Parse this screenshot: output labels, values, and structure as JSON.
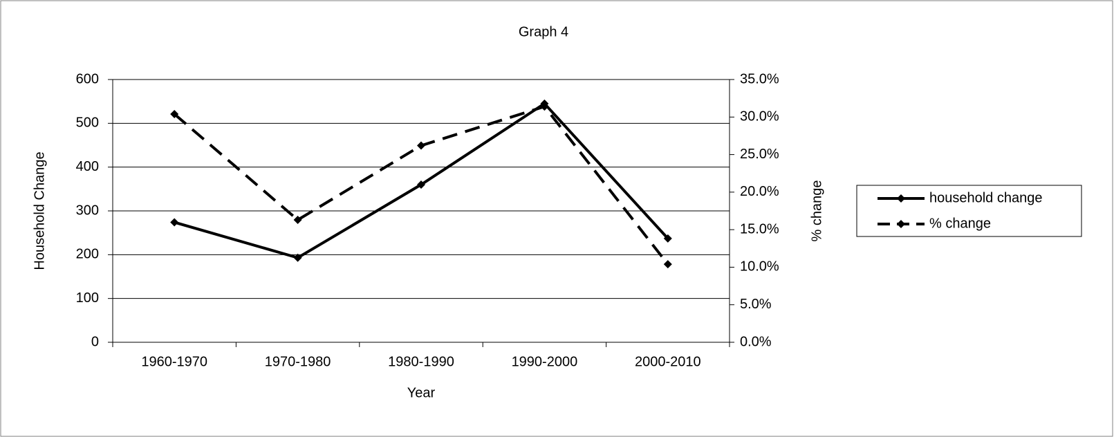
{
  "chart_data": {
    "type": "line",
    "title": "Graph 4",
    "x_label": "Year",
    "y_label": "Household Change",
    "y2_label": "% change",
    "categories": [
      "1960-1970",
      "1970-1980",
      "1980-1990",
      "1990-2000",
      "2000-2010"
    ],
    "series": [
      {
        "name": "household change",
        "color": "#000000",
        "style": "solid",
        "values": [
          274,
          193,
          360,
          545,
          237
        ]
      },
      {
        "name": "% change",
        "color": "#000000",
        "style": "dashed",
        "axis": "y2",
        "values": [
          30.4,
          16.3,
          26.2,
          31.4,
          10.4
        ]
      }
    ],
    "ylim": [
      0,
      600
    ],
    "yticks": [
      0,
      100,
      200,
      300,
      400,
      500,
      600
    ],
    "y2lim": [
      0,
      35
    ],
    "y2ticks": [
      {
        "value": 0,
        "label": "0.0%"
      },
      {
        "value": 5,
        "label": "5.0%"
      },
      {
        "value": 10,
        "label": "10.0%"
      },
      {
        "value": 15,
        "label": "15.0%"
      },
      {
        "value": 20,
        "label": "20.0%"
      },
      {
        "value": 25,
        "label": "25.0%"
      },
      {
        "value": 30,
        "label": "30.0%"
      },
      {
        "value": 35,
        "label": "35.0%"
      }
    ],
    "grid": true,
    "legend": "right"
  }
}
